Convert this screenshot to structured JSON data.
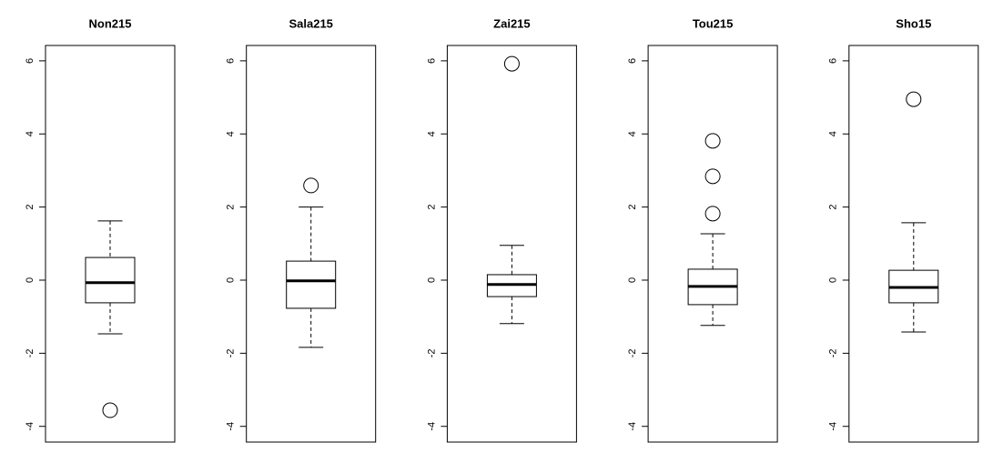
{
  "chart_data": [
    {
      "type": "box",
      "title": "Non215",
      "min": -1.47,
      "q1": -0.62,
      "median": -0.07,
      "q3": 0.62,
      "max": 1.62,
      "outliers": [
        -3.56
      ],
      "ylim": [
        -4.43,
        6.42
      ],
      "yticks": [
        -4,
        -2,
        0,
        2,
        4,
        6
      ]
    },
    {
      "type": "box",
      "title": "Sala215",
      "min": -1.84,
      "q1": -0.77,
      "median": -0.02,
      "q3": 0.52,
      "max": 2.0,
      "outliers": [
        2.59
      ],
      "ylim": [
        -4.43,
        6.42
      ],
      "yticks": [
        -4,
        -2,
        0,
        2,
        4,
        6
      ]
    },
    {
      "type": "box",
      "title": "Zai215",
      "min": -1.19,
      "q1": -0.45,
      "median": -0.12,
      "q3": 0.15,
      "max": 0.95,
      "outliers": [
        5.92
      ],
      "ylim": [
        -4.43,
        6.42
      ],
      "yticks": [
        -4,
        -2,
        0,
        2,
        4,
        6
      ]
    },
    {
      "type": "box",
      "title": "Tou215",
      "min": -1.24,
      "q1": -0.67,
      "median": -0.17,
      "q3": 0.3,
      "max": 1.27,
      "outliers": [
        3.81,
        2.84,
        1.82
      ],
      "ylim": [
        -4.43,
        6.42
      ],
      "yticks": [
        -4,
        -2,
        0,
        2,
        4,
        6
      ]
    },
    {
      "type": "box",
      "title": "Sho15",
      "min": -1.42,
      "q1": -0.62,
      "median": -0.2,
      "q3": 0.27,
      "max": 1.57,
      "outliers": [
        4.95
      ],
      "ylim": [
        -4.43,
        6.42
      ],
      "yticks": [
        -4,
        -2,
        0,
        2,
        4,
        6
      ]
    }
  ]
}
